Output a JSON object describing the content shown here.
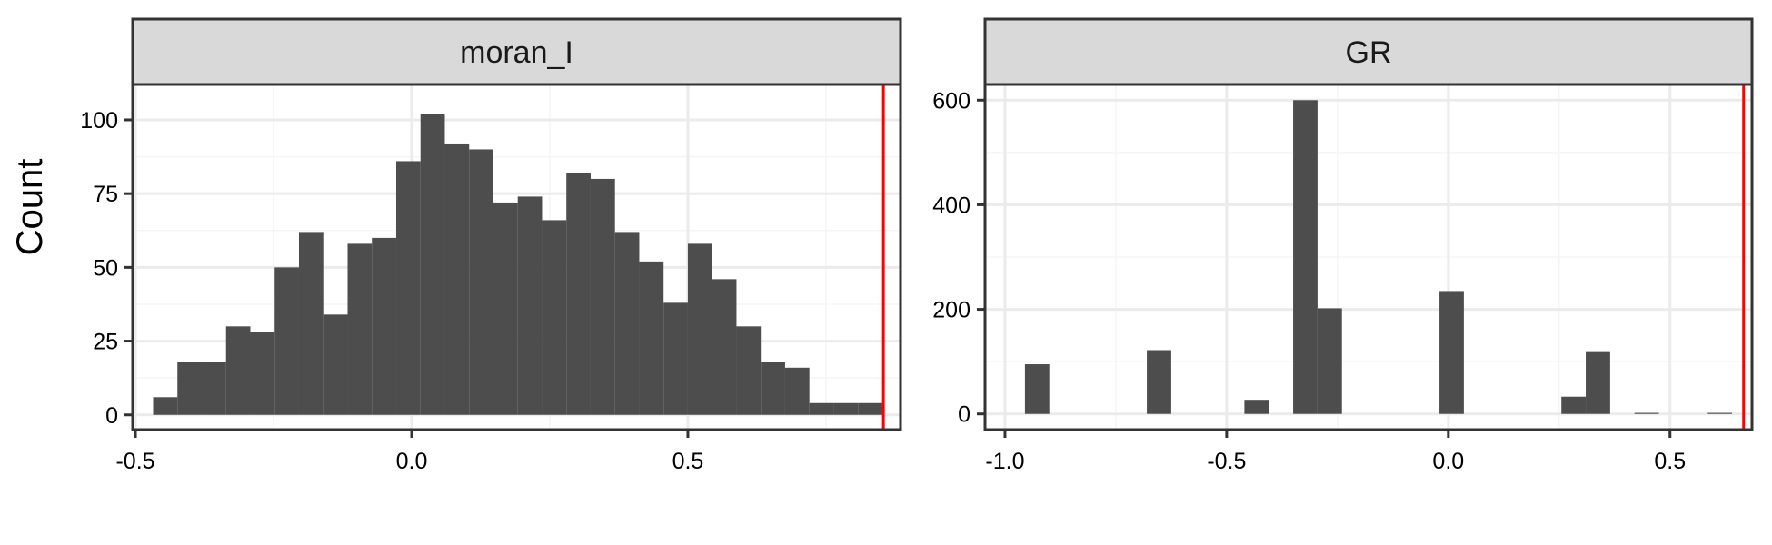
{
  "figure": {
    "ylabel": "Count"
  },
  "style": {
    "bar_color": "#4d4d4d",
    "strip_fill": "#d9d9d9",
    "panel_border": "#333333",
    "grid_major": "#ebebeb",
    "grid_minor": "#f5f5f5",
    "vline_color": "#ff0000",
    "text_color": "#000000"
  },
  "chart_data": [
    {
      "type": "bar",
      "panel": "moran_I",
      "title": "moran_I",
      "xlabel": "",
      "ylabel": "Count",
      "grid": true,
      "xlim": [
        -0.505,
        0.885
      ],
      "ylim": [
        -5,
        112
      ],
      "xticks": [
        -0.5,
        0.0,
        0.5
      ],
      "xtick_labels": [
        "-0.5",
        "0.0",
        "0.5"
      ],
      "yticks": [
        0,
        25,
        50,
        75,
        100
      ],
      "ytick_labels": [
        "0",
        "25",
        "50",
        "75",
        "100"
      ],
      "bin_edges": [
        -0.468,
        -0.424,
        -0.38,
        -0.336,
        -0.292,
        -0.248,
        -0.204,
        -0.16,
        -0.116,
        -0.072,
        -0.028,
        0.016,
        0.06,
        0.104,
        0.148,
        0.192,
        0.236,
        0.28,
        0.324,
        0.368,
        0.412,
        0.456,
        0.5,
        0.544,
        0.588,
        0.632,
        0.676,
        0.72,
        0.764,
        0.808,
        0.852
      ],
      "values": [
        6,
        18,
        18,
        30,
        28,
        50,
        62,
        34,
        58,
        60,
        86,
        102,
        92,
        90,
        72,
        74,
        66,
        82,
        80,
        62,
        52,
        38,
        58,
        46,
        30,
        18,
        16,
        4,
        4,
        4
      ],
      "reference_line": 0.854
    },
    {
      "type": "bar",
      "panel": "GR",
      "title": "GR",
      "xlabel": "",
      "ylabel": "Count",
      "grid": true,
      "xlim": [
        -1.045,
        0.685
      ],
      "ylim": [
        -30,
        630
      ],
      "xticks": [
        -1.0,
        -0.5,
        0.0,
        0.5
      ],
      "xtick_labels": [
        "-1.0",
        "-0.5",
        "0.0",
        "0.5"
      ],
      "yticks": [
        0,
        200,
        400,
        600
      ],
      "ytick_labels": [
        "0",
        "200",
        "400",
        "600"
      ],
      "bin_edges": [
        -0.955,
        -0.9,
        -0.845,
        -0.79,
        -0.735,
        -0.68,
        -0.625,
        -0.57,
        -0.515,
        -0.46,
        -0.405,
        -0.35,
        -0.295,
        -0.24,
        -0.185,
        -0.13,
        -0.075,
        -0.02,
        0.035,
        0.09,
        0.145,
        0.2,
        0.255,
        0.31,
        0.365,
        0.42,
        0.475,
        0.53,
        0.585,
        0.64,
        0.695
      ],
      "values": [
        95,
        0,
        0,
        0,
        0,
        122,
        0,
        0,
        0,
        27,
        0,
        600,
        202,
        0,
        0,
        0,
        0,
        235,
        0,
        0,
        0,
        0,
        33,
        120,
        0,
        2,
        0,
        0,
        2,
        0
      ],
      "reference_line": 0.666
    }
  ]
}
